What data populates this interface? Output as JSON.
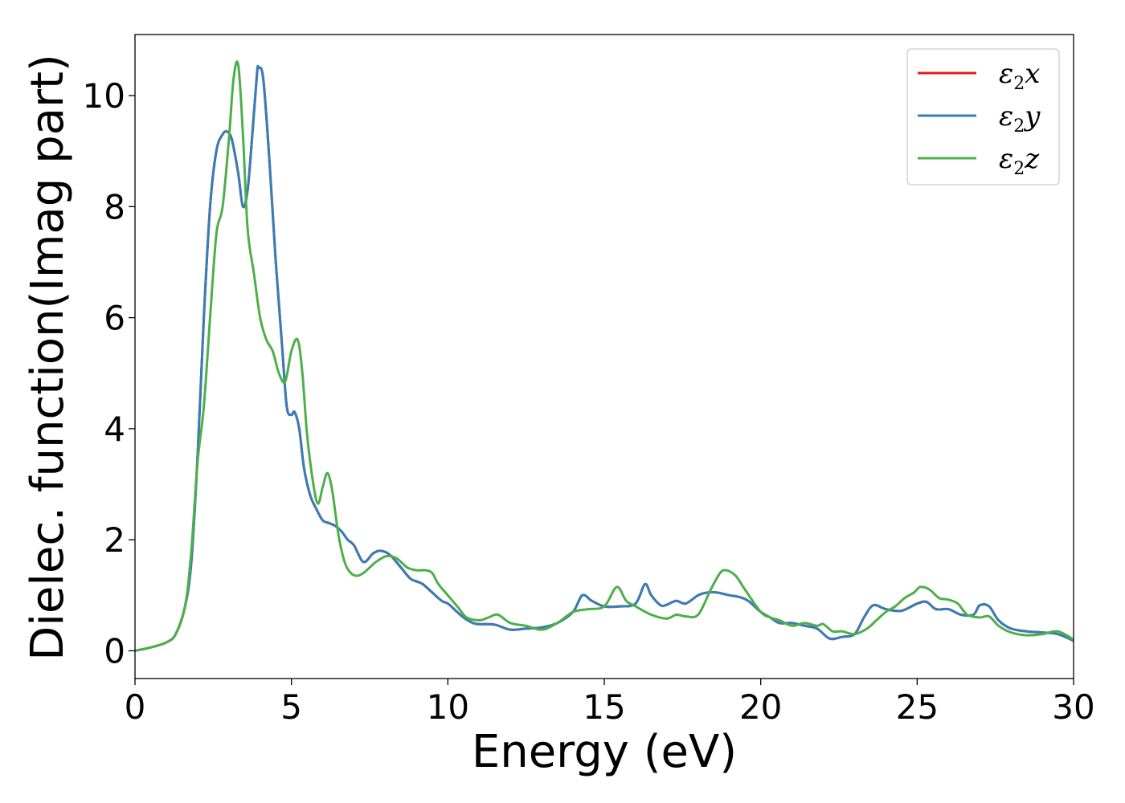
{
  "chart_data": {
    "type": "line",
    "xlabel": "Energy (eV)",
    "ylabel": "Dielec. function(Imag part)",
    "xlim": [
      0,
      30
    ],
    "ylim": [
      -0.5,
      11.1
    ],
    "xticks": [
      "0",
      "5",
      "10",
      "15",
      "20",
      "25",
      "30"
    ],
    "yticks": [
      "0",
      "2",
      "4",
      "6",
      "8",
      "10"
    ],
    "grid": false,
    "legend_position": "top-right",
    "series": [
      {
        "name": "ε2x",
        "legend_base": "ε",
        "legend_sub": "2",
        "legend_var": "x",
        "color": "#e41a1c",
        "x": [
          0,
          0.5,
          1,
          1.3,
          1.6,
          1.8,
          2,
          2.2,
          2.4,
          2.6,
          2.8,
          2.95,
          3.1,
          3.3,
          3.45,
          3.6,
          3.75,
          3.9,
          3.95,
          4.1,
          4.3,
          4.5,
          4.7,
          4.85,
          5,
          5.1,
          5.25,
          5.4,
          5.6,
          5.8,
          6,
          6.2,
          6.4,
          6.6,
          6.8,
          7,
          7.3,
          7.6,
          7.8,
          8,
          8.2,
          8.5,
          8.8,
          9,
          9.2,
          9.5,
          9.8,
          10,
          10.2,
          10.5,
          10.8,
          11,
          11.5,
          12,
          12.5,
          13,
          13.5,
          14,
          14.3,
          14.6,
          15,
          15.5,
          16,
          16.3,
          16.5,
          16.8,
          17,
          17.3,
          17.6,
          18,
          18.3,
          18.6,
          19,
          19.3,
          19.6,
          20,
          20.3,
          20.6,
          21,
          21.4,
          21.8,
          22.2,
          22.6,
          23,
          23.3,
          23.6,
          24,
          24.5,
          25,
          25.3,
          25.6,
          26,
          26.4,
          26.8,
          27,
          27.3,
          27.6,
          28,
          28.5,
          29,
          29.5,
          30
        ],
        "values": [
          0,
          0.06,
          0.15,
          0.3,
          0.8,
          1.6,
          3.5,
          6.0,
          8.0,
          9.0,
          9.3,
          9.35,
          9.2,
          8.6,
          8.0,
          8.3,
          9.3,
          10.4,
          10.5,
          10.3,
          8.8,
          7.0,
          5.5,
          4.4,
          4.25,
          4.3,
          4.0,
          3.3,
          2.8,
          2.55,
          2.35,
          2.3,
          2.25,
          2.15,
          2.0,
          1.9,
          1.6,
          1.75,
          1.8,
          1.78,
          1.7,
          1.5,
          1.3,
          1.25,
          1.2,
          1.05,
          0.9,
          0.85,
          0.75,
          0.6,
          0.5,
          0.48,
          0.47,
          0.38,
          0.4,
          0.42,
          0.5,
          0.7,
          1.0,
          0.9,
          0.8,
          0.8,
          0.85,
          1.2,
          1.0,
          0.82,
          0.83,
          0.9,
          0.85,
          1.0,
          1.05,
          1.05,
          1.0,
          0.97,
          0.9,
          0.7,
          0.6,
          0.5,
          0.5,
          0.45,
          0.4,
          0.22,
          0.25,
          0.3,
          0.6,
          0.82,
          0.75,
          0.72,
          0.85,
          0.88,
          0.75,
          0.75,
          0.65,
          0.65,
          0.82,
          0.8,
          0.55,
          0.4,
          0.35,
          0.33,
          0.3,
          0.18
        ]
      },
      {
        "name": "ε2y",
        "legend_base": "ε",
        "legend_sub": "2",
        "legend_var": "y",
        "color": "#377eb8",
        "x": [
          0,
          0.5,
          1,
          1.3,
          1.6,
          1.8,
          2,
          2.2,
          2.4,
          2.6,
          2.8,
          2.95,
          3.1,
          3.3,
          3.45,
          3.6,
          3.75,
          3.9,
          3.95,
          4.1,
          4.3,
          4.5,
          4.7,
          4.85,
          5,
          5.1,
          5.25,
          5.4,
          5.6,
          5.8,
          6,
          6.2,
          6.4,
          6.6,
          6.8,
          7,
          7.3,
          7.6,
          7.8,
          8,
          8.2,
          8.5,
          8.8,
          9,
          9.2,
          9.5,
          9.8,
          10,
          10.2,
          10.5,
          10.8,
          11,
          11.5,
          12,
          12.5,
          13,
          13.5,
          14,
          14.3,
          14.6,
          15,
          15.5,
          16,
          16.3,
          16.5,
          16.8,
          17,
          17.3,
          17.6,
          18,
          18.3,
          18.6,
          19,
          19.3,
          19.6,
          20,
          20.3,
          20.6,
          21,
          21.4,
          21.8,
          22.2,
          22.6,
          23,
          23.3,
          23.6,
          24,
          24.5,
          25,
          25.3,
          25.6,
          26,
          26.4,
          26.8,
          27,
          27.3,
          27.6,
          28,
          28.5,
          29,
          29.5,
          30
        ],
        "values": [
          0,
          0.06,
          0.15,
          0.3,
          0.8,
          1.6,
          3.5,
          6.0,
          8.0,
          9.0,
          9.3,
          9.35,
          9.2,
          8.6,
          8.0,
          8.3,
          9.3,
          10.4,
          10.5,
          10.3,
          8.8,
          7.0,
          5.5,
          4.4,
          4.25,
          4.3,
          4.0,
          3.3,
          2.8,
          2.55,
          2.35,
          2.3,
          2.25,
          2.15,
          2.0,
          1.9,
          1.6,
          1.75,
          1.8,
          1.78,
          1.7,
          1.5,
          1.3,
          1.25,
          1.2,
          1.05,
          0.9,
          0.85,
          0.75,
          0.6,
          0.5,
          0.48,
          0.47,
          0.38,
          0.4,
          0.42,
          0.5,
          0.7,
          1.0,
          0.9,
          0.8,
          0.8,
          0.85,
          1.2,
          1.0,
          0.82,
          0.83,
          0.9,
          0.85,
          1.0,
          1.05,
          1.05,
          1.0,
          0.97,
          0.9,
          0.7,
          0.6,
          0.5,
          0.5,
          0.45,
          0.4,
          0.22,
          0.25,
          0.3,
          0.6,
          0.82,
          0.75,
          0.72,
          0.85,
          0.88,
          0.75,
          0.75,
          0.65,
          0.65,
          0.82,
          0.8,
          0.55,
          0.4,
          0.35,
          0.33,
          0.3,
          0.18
        ]
      },
      {
        "name": "ε2z",
        "legend_base": "ε",
        "legend_sub": "2",
        "legend_var": "z",
        "color": "#4daf4a",
        "x": [
          0,
          0.5,
          1,
          1.3,
          1.6,
          1.8,
          2,
          2.2,
          2.4,
          2.6,
          2.8,
          3,
          3.15,
          3.3,
          3.45,
          3.6,
          3.8,
          4,
          4.2,
          4.4,
          4.6,
          4.8,
          5,
          5.2,
          5.35,
          5.5,
          5.7,
          5.85,
          6,
          6.15,
          6.3,
          6.5,
          6.7,
          6.9,
          7.1,
          7.3,
          7.5,
          7.7,
          8,
          8.2,
          8.4,
          8.7,
          9,
          9.3,
          9.5,
          9.7,
          10,
          10.3,
          10.6,
          11,
          11.3,
          11.6,
          12,
          12.5,
          13,
          13.5,
          14,
          14.5,
          15,
          15.4,
          15.7,
          16,
          16.5,
          17,
          17.3,
          17.6,
          18,
          18.4,
          18.7,
          18.9,
          19.2,
          19.5,
          20,
          20.3,
          20.6,
          21,
          21.4,
          21.8,
          22,
          22.3,
          22.6,
          23,
          23.4,
          23.7,
          24,
          24.3,
          24.6,
          24.9,
          25.1,
          25.4,
          25.7,
          26,
          26.3,
          26.6,
          27,
          27.3,
          27.6,
          28,
          28.5,
          29,
          29.5,
          30
        ],
        "values": [
          0,
          0.06,
          0.15,
          0.3,
          0.8,
          1.8,
          3.4,
          4.4,
          6.0,
          7.5,
          8.0,
          9.2,
          10.3,
          10.55,
          9.3,
          7.6,
          6.8,
          6.0,
          5.6,
          5.4,
          5.0,
          4.85,
          5.4,
          5.6,
          5.0,
          3.9,
          3.0,
          2.65,
          2.95,
          3.2,
          2.9,
          2.1,
          1.6,
          1.4,
          1.35,
          1.4,
          1.5,
          1.6,
          1.7,
          1.7,
          1.65,
          1.5,
          1.45,
          1.45,
          1.4,
          1.2,
          1.0,
          0.8,
          0.6,
          0.55,
          0.6,
          0.65,
          0.5,
          0.45,
          0.38,
          0.5,
          0.7,
          0.75,
          0.8,
          1.15,
          0.9,
          0.8,
          0.65,
          0.58,
          0.65,
          0.62,
          0.65,
          1.1,
          1.4,
          1.45,
          1.35,
          1.1,
          0.7,
          0.6,
          0.55,
          0.45,
          0.5,
          0.45,
          0.48,
          0.35,
          0.35,
          0.3,
          0.4,
          0.55,
          0.7,
          0.8,
          0.95,
          1.05,
          1.15,
          1.1,
          0.95,
          0.92,
          0.85,
          0.65,
          0.6,
          0.62,
          0.45,
          0.33,
          0.28,
          0.3,
          0.35,
          0.2
        ]
      }
    ]
  }
}
